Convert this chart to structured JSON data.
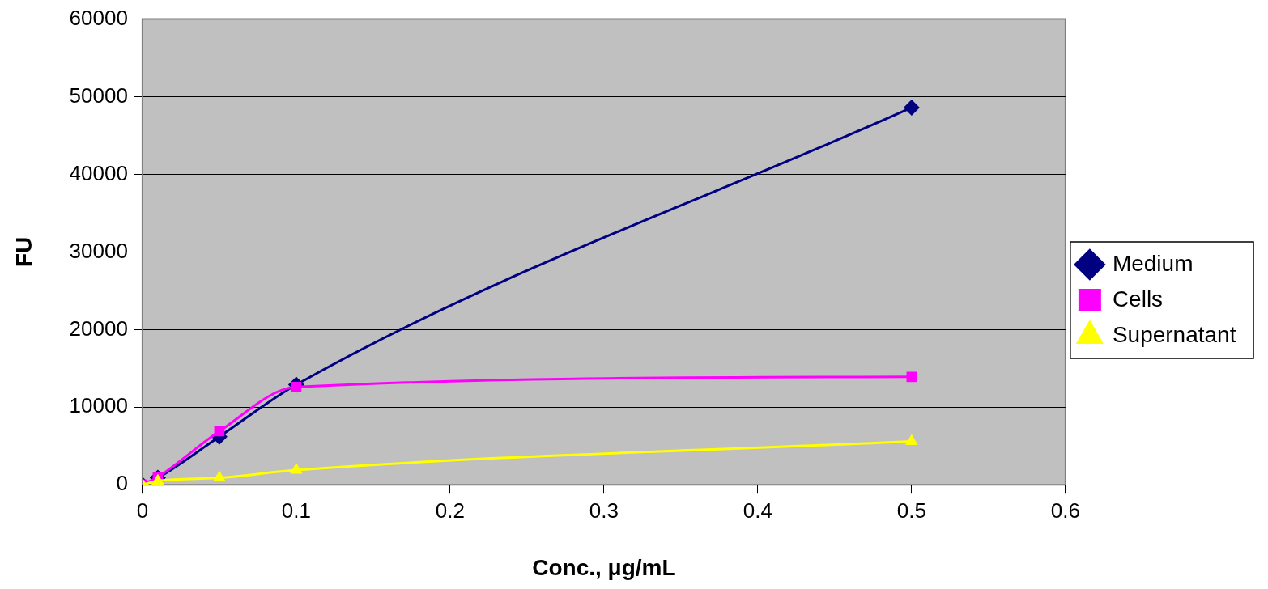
{
  "chart_data": {
    "type": "line",
    "xlabel": "Conc., μg/mL",
    "ylabel": "FU",
    "x": [
      0,
      0.01,
      0.05,
      0.1,
      0.5
    ],
    "series": [
      {
        "name": "Medium",
        "color": "#000080",
        "marker": "diamond",
        "values": [
          0,
          900,
          6200,
          12900,
          48600
        ]
      },
      {
        "name": "Cells",
        "color": "#ff00ff",
        "marker": "square",
        "values": [
          0,
          1000,
          6900,
          12600,
          13900
        ]
      },
      {
        "name": "Supernatant",
        "color": "#ffff00",
        "marker": "triangle",
        "values": [
          0,
          500,
          900,
          1900,
          5600
        ]
      }
    ],
    "xlim": [
      0,
      0.6
    ],
    "xticks": [
      0,
      0.1,
      0.2,
      0.3,
      0.4,
      0.5,
      0.6
    ],
    "ylim": [
      0,
      60000
    ],
    "yticks": [
      0,
      10000,
      20000,
      30000,
      40000,
      50000,
      60000
    ],
    "grid": "y",
    "legend": "right"
  }
}
